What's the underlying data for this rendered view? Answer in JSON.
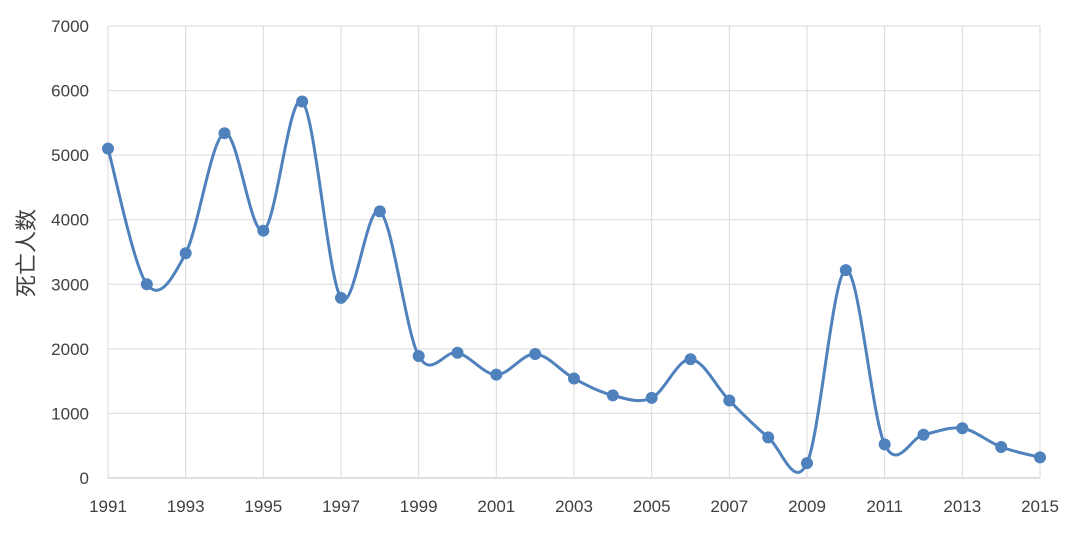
{
  "chart_data": {
    "type": "line",
    "smooth": true,
    "ylabel": "死亡人数",
    "xlabel": "",
    "title": "",
    "color": "#4f81bd",
    "grid": true,
    "xlim": [
      1991,
      2015
    ],
    "ylim": [
      0,
      7000
    ],
    "x_ticks": [
      "1991",
      "1993",
      "1995",
      "1997",
      "1999",
      "2001",
      "2003",
      "2005",
      "2007",
      "2009",
      "2011",
      "2013",
      "2015"
    ],
    "y_ticks": [
      "0",
      "1000",
      "2000",
      "3000",
      "4000",
      "5000",
      "6000",
      "7000"
    ],
    "x": [
      1991,
      1992,
      1993,
      1994,
      1995,
      1996,
      1997,
      1998,
      1999,
      2000,
      2001,
      2002,
      2003,
      2004,
      2005,
      2006,
      2007,
      2008,
      2009,
      2010,
      2011,
      2012,
      2013,
      2014,
      2015
    ],
    "values": [
      5100,
      3000,
      3480,
      5340,
      3830,
      5830,
      2790,
      4130,
      1890,
      1940,
      1600,
      1920,
      1540,
      1280,
      1240,
      1840,
      1200,
      630,
      230,
      3220,
      520,
      670,
      770,
      480,
      320
    ]
  }
}
